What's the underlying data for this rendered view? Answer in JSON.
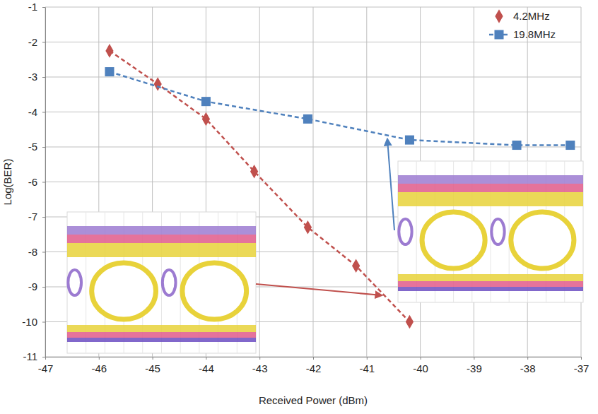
{
  "chart_data": {
    "type": "line",
    "x_label": "Received Power (dBm)",
    "y_label": "Log(BER)",
    "xlim": [
      -47,
      -37
    ],
    "xticks": [
      -47,
      -46,
      -45,
      -44,
      -43,
      -42,
      -41,
      -40,
      -39,
      -38,
      -37
    ],
    "ylim": [
      -11,
      -1
    ],
    "yticks": [
      -11,
      -10,
      -9,
      -8,
      -7,
      -6,
      -5,
      -4,
      -3,
      -2,
      -1
    ],
    "grid": true,
    "legend": "top-right",
    "series": [
      {
        "name": "4.2MHz",
        "color": "#c0504d",
        "marker": "diamond",
        "line_style": "dashed",
        "x": [
          -45.8,
          -44.9,
          -44.0,
          -43.1,
          -42.1,
          -41.2,
          -40.2
        ],
        "values": [
          -2.25,
          -3.2,
          -4.2,
          -5.7,
          -7.3,
          -8.4,
          -10.0
        ]
      },
      {
        "name": "19.8MHz",
        "color": "#4f81bd",
        "marker": "square",
        "line_style": "dashed",
        "x": [
          -45.8,
          -44.0,
          -42.1,
          -40.2,
          -38.2,
          -37.2
        ],
        "values": [
          -2.85,
          -3.7,
          -4.2,
          -4.8,
          -4.95,
          -4.95
        ]
      }
    ]
  }
}
